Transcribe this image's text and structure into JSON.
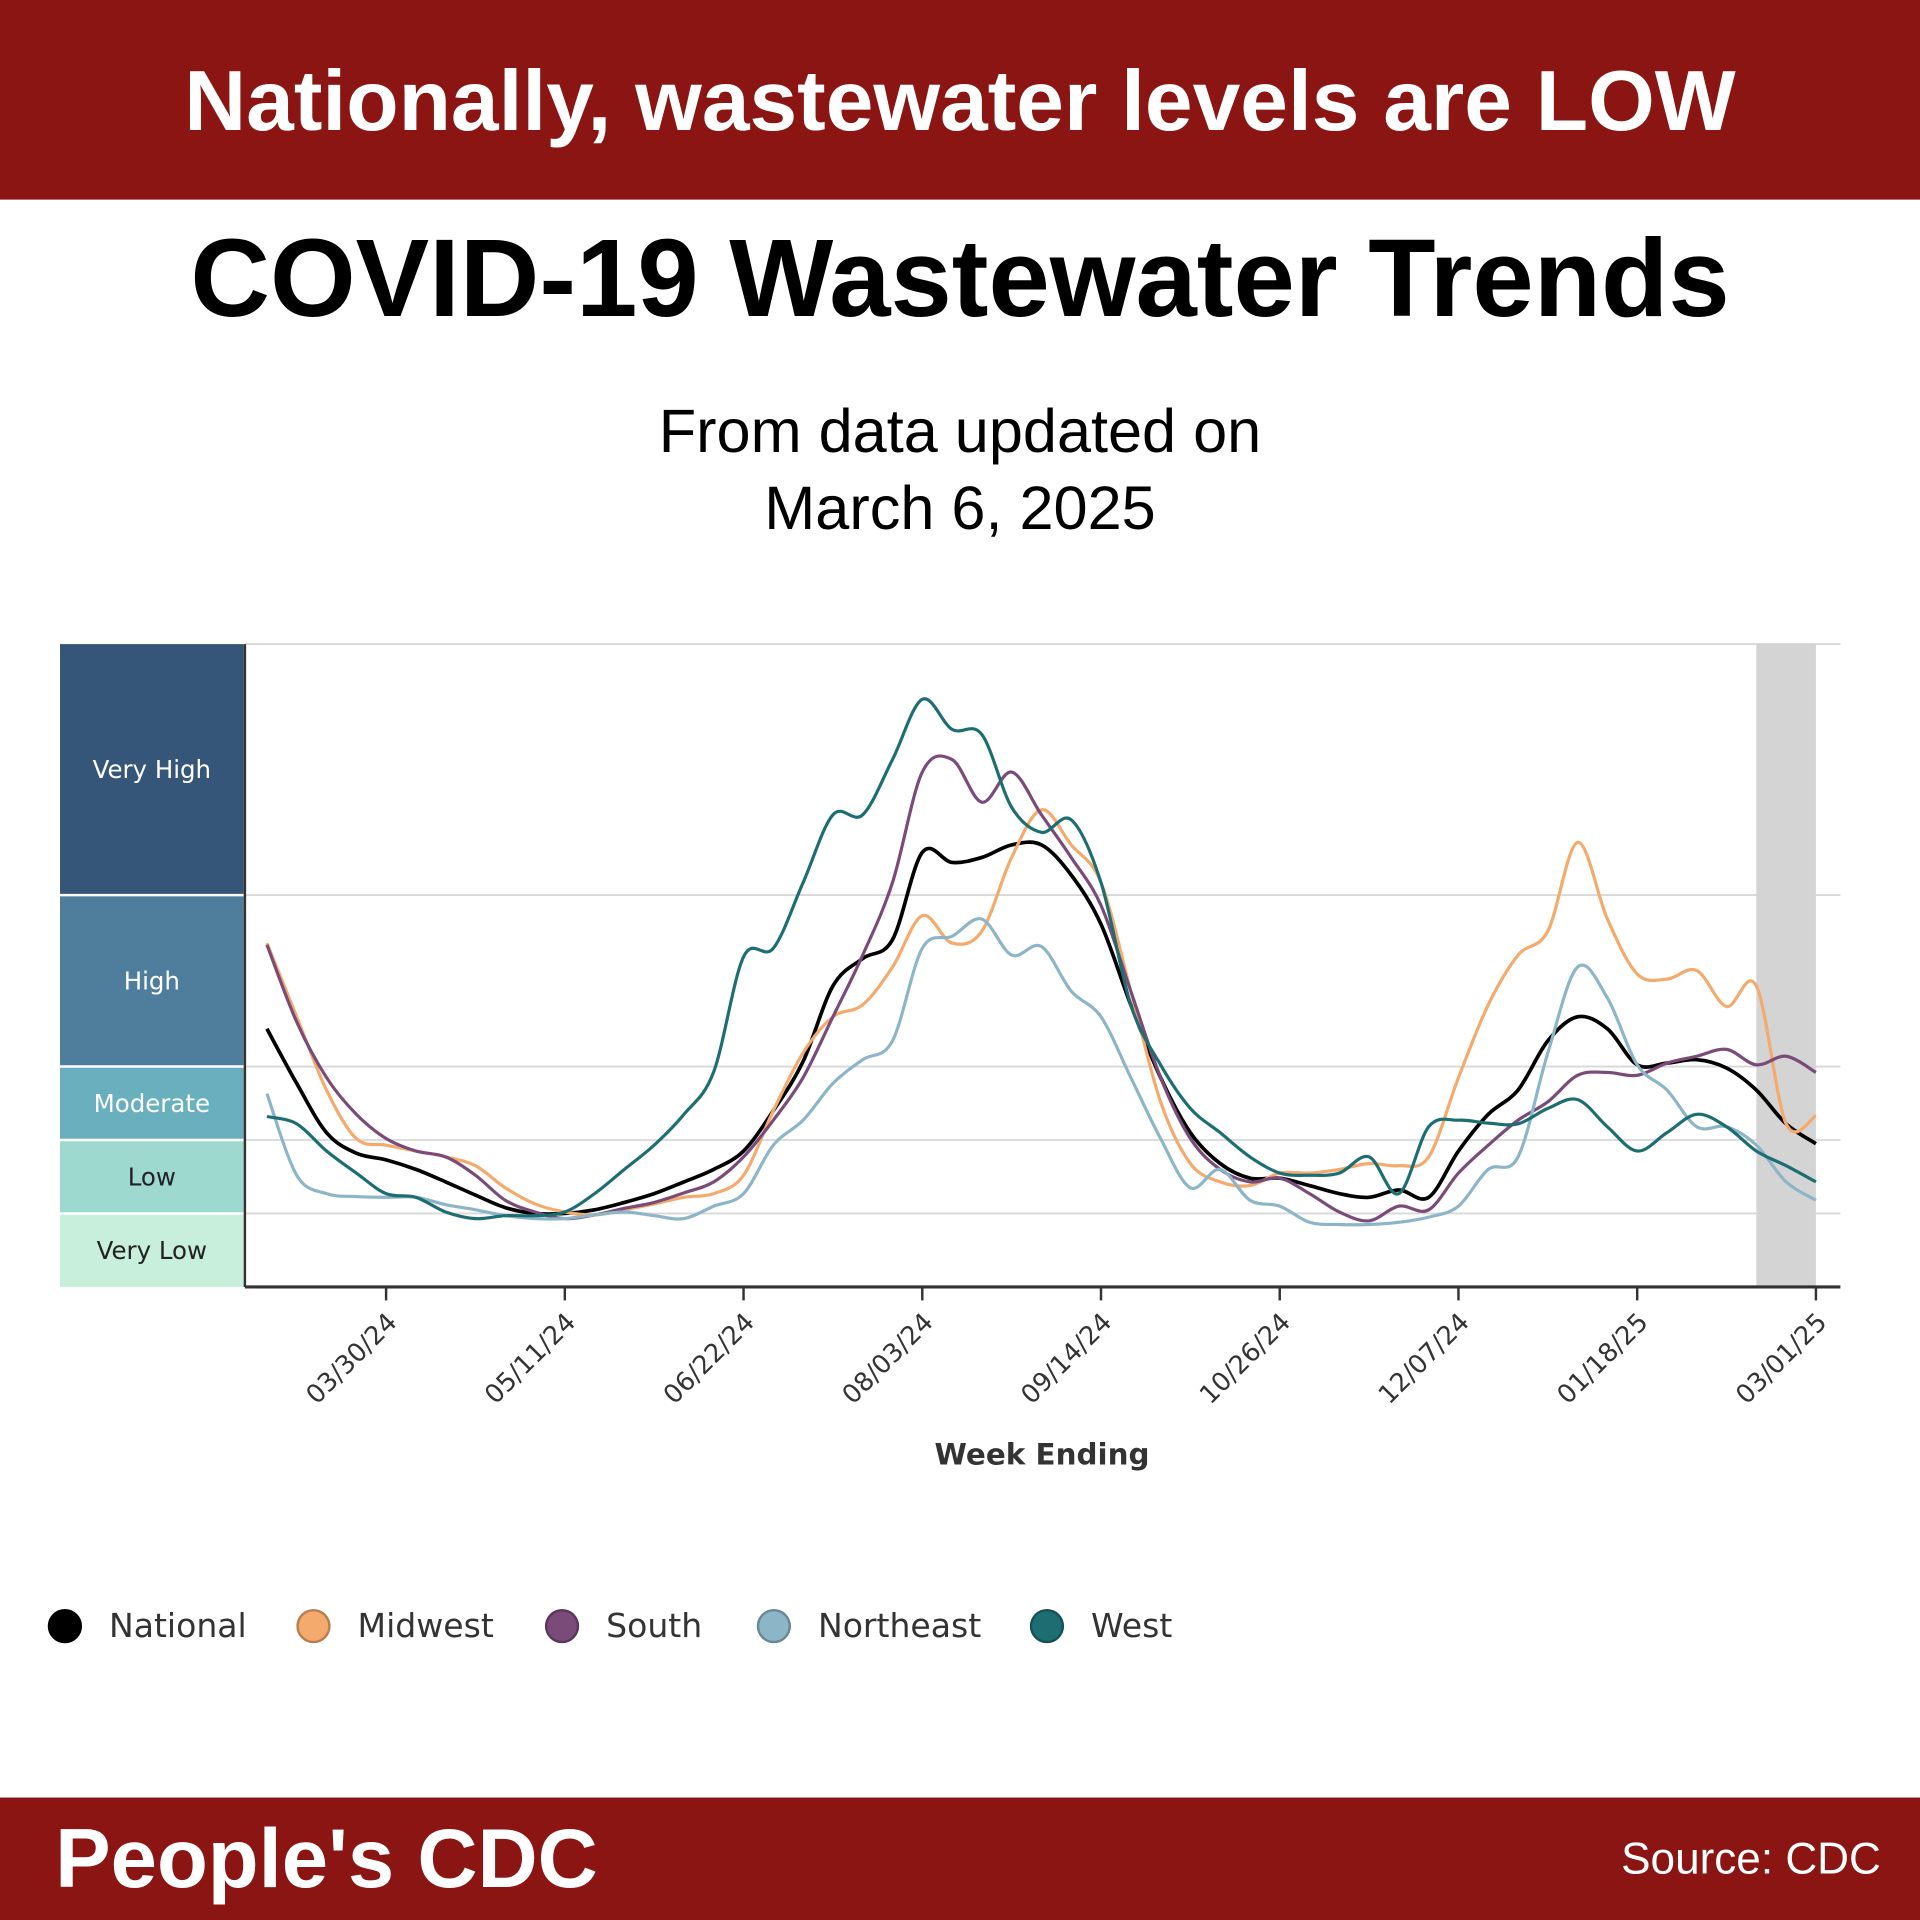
{
  "header": {
    "headline": "Nationally, wastewater levels are LOW"
  },
  "title": "COVID-19 Wastewater Trends",
  "subtitle": {
    "line1": "From data updated on",
    "line2": "March 6, 2025"
  },
  "footer": {
    "brand": "People's CDC",
    "source": "Source: CDC"
  },
  "chart_data": {
    "type": "line",
    "xlabel": "Week Ending",
    "ylabel": "",
    "y_scale": "categorical levels (0 = bottom of Very Low, 5 = top of Very High)",
    "levels": [
      {
        "label": "Very Low",
        "color": "#c8efdb"
      },
      {
        "label": "Low",
        "color": "#9dd9cf"
      },
      {
        "label": "Moderate",
        "color": "#6aafbe"
      },
      {
        "label": "High",
        "color": "#4e7e9c"
      },
      {
        "label": "Very High",
        "color": "#365679"
      }
    ],
    "x_ticks": [
      "03/30/24",
      "05/11/24",
      "06/22/24",
      "08/03/24",
      "09/14/24",
      "10/26/24",
      "12/07/24",
      "01/18/25",
      "03/01/25"
    ],
    "x_range": [
      "03/02/24",
      "03/01/25"
    ],
    "x_interval": "weekly",
    "shaded_recent_period": [
      "02/15/25",
      "03/01/25"
    ],
    "grid": "horizontal at level boundaries",
    "legend_placement": "bottom",
    "series": [
      {
        "name": "National",
        "color": "#000000",
        "values": [
          3.22,
          2.77,
          2.1,
          1.82,
          1.73,
          1.6,
          1.43,
          1.25,
          1.08,
          1.0,
          1.0,
          1.05,
          1.15,
          1.27,
          1.43,
          1.6,
          1.85,
          2.4,
          3.03,
          3.47,
          3.63,
          3.74,
          4.17,
          4.13,
          4.15,
          4.2,
          4.2,
          4.08,
          3.83,
          3.36,
          2.85,
          2.1,
          1.68,
          1.48,
          1.48,
          1.38,
          1.27,
          1.22,
          1.32,
          1.22,
          1.85,
          2.35,
          2.68,
          3.15,
          3.29,
          3.22,
          3.01,
          3.02,
          3.04,
          2.98,
          2.68,
          2.22,
          1.95
        ]
      },
      {
        "name": "Midwest",
        "color": "#f4aa6c",
        "values": [
          3.72,
          3.29,
          2.68,
          2.02,
          1.93,
          1.85,
          1.77,
          1.65,
          1.35,
          1.13,
          1.02,
          0.98,
          1.05,
          1.13,
          1.22,
          1.27,
          1.52,
          2.4,
          3.08,
          3.29,
          3.36,
          3.58,
          3.88,
          3.72,
          3.79,
          4.15,
          4.34,
          4.2,
          4.05,
          3.44,
          2.52,
          1.68,
          1.43,
          1.38,
          1.55,
          1.55,
          1.6,
          1.68,
          1.65,
          1.77,
          2.85,
          3.36,
          3.65,
          3.79,
          4.21,
          3.86,
          3.54,
          3.51,
          3.56,
          3.35,
          3.47,
          2.22,
          2.33
        ]
      },
      {
        "name": "South",
        "color": "#7a4a79",
        "values": [
          3.71,
          3.26,
          2.85,
          2.35,
          2.02,
          1.85,
          1.77,
          1.52,
          1.18,
          1.02,
          0.93,
          0.98,
          1.07,
          1.15,
          1.28,
          1.43,
          1.77,
          2.27,
          2.85,
          3.29,
          3.65,
          4.05,
          4.49,
          4.54,
          4.37,
          4.49,
          4.32,
          4.15,
          3.94,
          3.44,
          2.85,
          2.02,
          1.6,
          1.43,
          1.48,
          1.27,
          1.02,
          0.9,
          1.1,
          1.05,
          1.55,
          1.93,
          2.27,
          2.52,
          2.88,
          2.92,
          2.88,
          3.02,
          3.06,
          3.1,
          3.01,
          3.06,
          2.92
        ]
      },
      {
        "name": "Northeast",
        "color": "#8cb5c8",
        "values": [
          2.63,
          1.52,
          1.27,
          1.23,
          1.22,
          1.22,
          1.12,
          1.05,
          0.97,
          0.93,
          0.93,
          0.98,
          1.02,
          0.97,
          0.93,
          1.1,
          1.27,
          1.93,
          2.27,
          2.77,
          3.04,
          3.15,
          3.69,
          3.76,
          3.86,
          3.65,
          3.7,
          3.44,
          3.29,
          2.85,
          2.02,
          1.35,
          1.6,
          1.18,
          1.1,
          0.88,
          0.85,
          0.85,
          0.88,
          0.95,
          1.1,
          1.6,
          1.77,
          3.08,
          3.58,
          3.4,
          3.01,
          2.68,
          2.18,
          2.18,
          1.93,
          1.43,
          1.18
        ]
      },
      {
        "name": "West",
        "color": "#1d6e72",
        "values": [
          2.32,
          2.22,
          1.85,
          1.55,
          1.27,
          1.22,
          1.02,
          0.93,
          0.97,
          0.97,
          1.02,
          1.27,
          1.6,
          1.93,
          2.35,
          2.93,
          3.64,
          3.69,
          4.05,
          4.32,
          4.32,
          4.54,
          4.78,
          4.66,
          4.64,
          4.35,
          4.25,
          4.3,
          4.05,
          3.36,
          3.01,
          2.43,
          2.1,
          1.77,
          1.55,
          1.52,
          1.55,
          1.77,
          1.27,
          2.18,
          2.27,
          2.23,
          2.22,
          2.43,
          2.55,
          2.18,
          1.85,
          2.1,
          2.35,
          2.18,
          1.85,
          1.65,
          1.43
        ]
      }
    ]
  }
}
